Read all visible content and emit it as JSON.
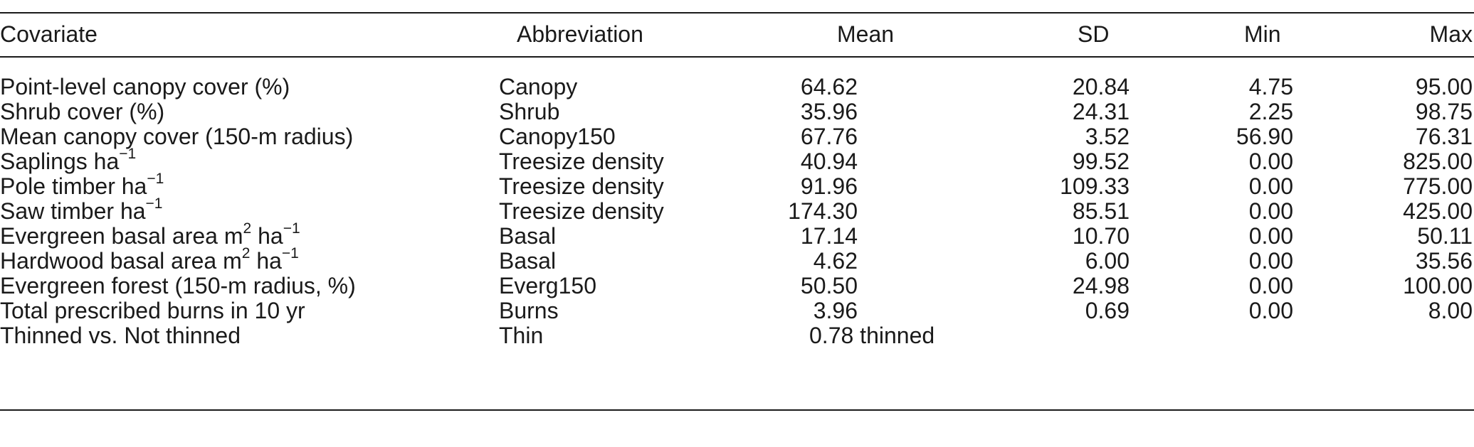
{
  "table": {
    "headers": {
      "covariate": "Covariate",
      "abbreviation": "Abbreviation",
      "mean": "Mean",
      "sd": "SD",
      "min": "Min",
      "max": "Max"
    },
    "rows": [
      {
        "covariate": "Point-level canopy cover (%)",
        "unit": "",
        "unit_sup": "",
        "unit2": "",
        "unit2_sup": "",
        "abbreviation": "Canopy",
        "mean": "64.62",
        "sd": "20.84",
        "min": "4.75",
        "max": "95.00"
      },
      {
        "covariate": "Shrub cover (%)",
        "unit": "",
        "unit_sup": "",
        "unit2": "",
        "unit2_sup": "",
        "abbreviation": "Shrub",
        "mean": "35.96",
        "sd": "24.31",
        "min": "2.25",
        "max": "98.75"
      },
      {
        "covariate": "Mean canopy cover (150-m radius)",
        "unit": "",
        "unit_sup": "",
        "unit2": "",
        "unit2_sup": "",
        "abbreviation": "Canopy150",
        "mean": "67.76",
        "sd": "3.52",
        "min": "56.90",
        "max": "76.31"
      },
      {
        "covariate": "Saplings ",
        "unit": "ha",
        "unit_sup": "−1",
        "unit2": "",
        "unit2_sup": "",
        "abbreviation": "Treesize density",
        "mean": "40.94",
        "sd": "99.52",
        "min": "0.00",
        "max": "825.00"
      },
      {
        "covariate": "Pole timber ",
        "unit": "ha",
        "unit_sup": "−1",
        "unit2": "",
        "unit2_sup": "",
        "abbreviation": "Treesize density",
        "mean": "91.96",
        "sd": "109.33",
        "min": "0.00",
        "max": "775.00"
      },
      {
        "covariate": "Saw timber ",
        "unit": "ha",
        "unit_sup": "−1",
        "unit2": "",
        "unit2_sup": "",
        "abbreviation": "Treesize density",
        "mean": "174.30",
        "sd": "85.51",
        "min": "0.00",
        "max": "425.00"
      },
      {
        "covariate": "Evergreen basal area ",
        "unit": "m",
        "unit_sup": "2",
        "unit2": " ha",
        "unit2_sup": "−1",
        "abbreviation": "Basal",
        "mean": "17.14",
        "sd": "10.70",
        "min": "0.00",
        "max": "50.11"
      },
      {
        "covariate": "Hardwood basal area ",
        "unit": "m",
        "unit_sup": "2",
        "unit2": " ha",
        "unit2_sup": "−1",
        "abbreviation": "Basal",
        "mean": "4.62",
        "sd": "6.00",
        "min": "0.00",
        "max": "35.56"
      },
      {
        "covariate": "Evergreen forest (150-m radius, %)",
        "unit": "",
        "unit_sup": "",
        "unit2": "",
        "unit2_sup": "",
        "abbreviation": "Everg150",
        "mean": "50.50",
        "sd": "24.98",
        "min": "0.00",
        "max": "100.00"
      },
      {
        "covariate": "Total prescribed burns in 10 yr",
        "unit": "",
        "unit_sup": "",
        "unit2": "",
        "unit2_sup": "",
        "abbreviation": "Burns",
        "mean": "3.96",
        "sd": "0.69",
        "min": "0.00",
        "max": "8.00"
      }
    ],
    "last_row": {
      "covariate": "Thinned vs. Not thinned",
      "abbreviation": "Thin",
      "note": "0.78 thinned"
    }
  }
}
